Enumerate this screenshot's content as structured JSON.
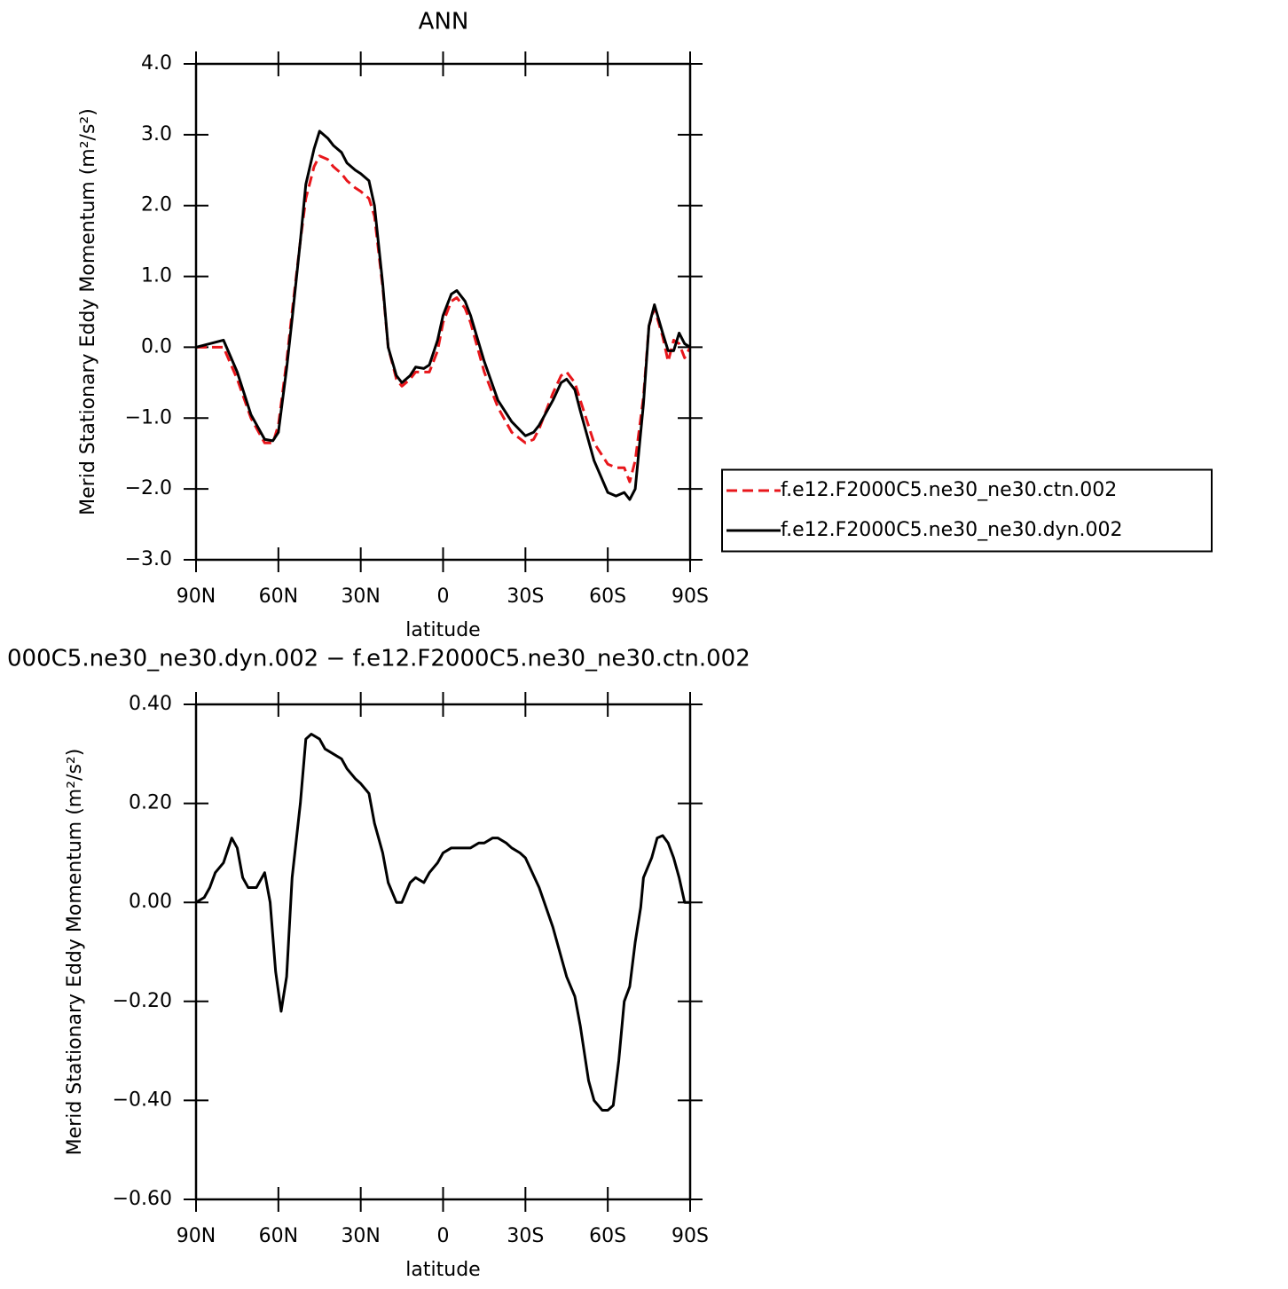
{
  "chart_data": [
    {
      "type": "line",
      "title": "ANN",
      "x_label": "latitude",
      "y_label": "Merid Stationary Eddy Momentum (m²/s²)",
      "x": [
        90,
        85,
        80,
        75,
        70,
        65,
        62,
        60,
        57,
        55,
        52,
        50,
        47,
        45,
        42,
        40,
        37,
        35,
        32,
        30,
        27,
        25,
        22,
        20,
        17,
        15,
        12,
        10,
        7,
        5,
        2,
        0,
        -3,
        -5,
        -8,
        -10,
        -15,
        -20,
        -25,
        -30,
        -33,
        -35,
        -40,
        -43,
        -45,
        -48,
        -50,
        -55,
        -60,
        -63,
        -66,
        -68,
        -70,
        -73,
        -75,
        -77,
        -80,
        -82,
        -84,
        -86,
        -88,
        -90
      ],
      "series": [
        {
          "name": "f.e12.F2000C5.ne30_ne30.ctn.002",
          "color": "#e8161b",
          "line_style": "dashed",
          "values": [
            0,
            0,
            0,
            -0.45,
            -1.0,
            -1.35,
            -1.35,
            -1.1,
            -0.2,
            0.5,
            1.5,
            2.1,
            2.55,
            2.7,
            2.65,
            2.55,
            2.45,
            2.35,
            2.25,
            2.2,
            2.1,
            1.85,
            0.85,
            0.0,
            -0.45,
            -0.55,
            -0.45,
            -0.35,
            -0.35,
            -0.35,
            -0.05,
            0.35,
            0.65,
            0.7,
            0.55,
            0.35,
            -0.35,
            -0.85,
            -1.2,
            -1.35,
            -1.3,
            -1.15,
            -0.65,
            -0.4,
            -0.35,
            -0.5,
            -0.75,
            -1.35,
            -1.65,
            -1.7,
            -1.7,
            -1.9,
            -1.6,
            -0.7,
            0.3,
            0.55,
            0.15,
            -0.2,
            0.1,
            0.05,
            -0.15,
            0.0
          ]
        },
        {
          "name": "f.e12.F2000C5.ne30_ne30.dyn.002",
          "color": "#000000",
          "line_style": "solid",
          "values": [
            0,
            0.05,
            0.1,
            -0.35,
            -0.95,
            -1.3,
            -1.32,
            -1.2,
            -0.3,
            0.4,
            1.5,
            2.3,
            2.8,
            3.05,
            2.95,
            2.85,
            2.75,
            2.6,
            2.5,
            2.45,
            2.35,
            2.0,
            0.9,
            0.0,
            -0.4,
            -0.5,
            -0.4,
            -0.28,
            -0.3,
            -0.25,
            0.1,
            0.45,
            0.75,
            0.8,
            0.65,
            0.45,
            -0.2,
            -0.75,
            -1.05,
            -1.25,
            -1.2,
            -1.1,
            -0.75,
            -0.5,
            -0.45,
            -0.6,
            -0.9,
            -1.6,
            -2.05,
            -2.1,
            -2.05,
            -2.15,
            -2.0,
            -0.8,
            0.3,
            0.6,
            0.2,
            -0.05,
            -0.05,
            0.2,
            0.05,
            0.0
          ]
        }
      ],
      "xlim": [
        90,
        -90
      ],
      "xticks": [
        {
          "value": 90,
          "label": "90N"
        },
        {
          "value": 60,
          "label": "60N"
        },
        {
          "value": 30,
          "label": "30N"
        },
        0,
        {
          "value": -30,
          "label": "30S"
        },
        {
          "value": -60,
          "label": "60S"
        },
        {
          "value": -90,
          "label": "90S"
        }
      ],
      "ylim": [
        -3,
        4
      ],
      "yticks": [
        {
          "value": 4,
          "label": "4.0"
        },
        {
          "value": 3,
          "label": "3.0"
        },
        {
          "value": 2,
          "label": "2.0"
        },
        {
          "value": 1,
          "label": "1.0"
        },
        {
          "value": 0,
          "label": "0.0"
        },
        {
          "value": -1,
          "label": "−1.0"
        },
        {
          "value": -2,
          "label": "−2.0"
        },
        {
          "value": -3,
          "label": "−3.0"
        }
      ],
      "legend": "right"
    },
    {
      "type": "line",
      "title": "000C5.ne30_ne30.dyn.002 − f.e12.F2000C5.ne30_ne30.ctn.002",
      "x_label": "latitude",
      "y_label": "Merid Stationary Eddy Momentum (m²/s²)",
      "x": [
        90,
        87,
        85,
        83,
        80,
        77,
        75,
        73,
        71,
        68,
        65,
        63,
        61,
        59,
        57,
        55,
        52,
        50,
        48,
        45,
        43,
        40,
        37,
        35,
        32,
        30,
        27,
        25,
        22,
        20,
        17,
        15,
        12,
        10,
        7,
        5,
        2,
        0,
        -3,
        -5,
        -8,
        -10,
        -13,
        -15,
        -18,
        -20,
        -23,
        -25,
        -28,
        -30,
        -35,
        -40,
        -45,
        -48,
        -50,
        -53,
        -55,
        -58,
        -60,
        -62,
        -64,
        -66,
        -68,
        -70,
        -72,
        -73,
        -76,
        -78,
        -80,
        -82,
        -84,
        -86,
        -88,
        -90
      ],
      "series": [
        {
          "color": "#000000",
          "line_style": "solid",
          "values": [
            0,
            0.01,
            0.03,
            0.06,
            0.08,
            0.13,
            0.11,
            0.05,
            0.03,
            0.03,
            0.06,
            0,
            -0.14,
            -0.22,
            -0.15,
            0.05,
            0.2,
            0.33,
            0.34,
            0.33,
            0.31,
            0.3,
            0.29,
            0.27,
            0.25,
            0.24,
            0.22,
            0.16,
            0.1,
            0.04,
            0,
            0,
            0.04,
            0.05,
            0.04,
            0.06,
            0.08,
            0.1,
            0.11,
            0.11,
            0.11,
            0.11,
            0.12,
            0.12,
            0.13,
            0.13,
            0.12,
            0.11,
            0.1,
            0.09,
            0.03,
            -0.05,
            -0.15,
            -0.19,
            -0.25,
            -0.36,
            -0.4,
            -0.42,
            -0.42,
            -0.41,
            -0.32,
            -0.2,
            -0.17,
            -0.08,
            -0.01,
            0.05,
            0.09,
            0.13,
            0.135,
            0.12,
            0.09,
            0.05,
            0,
            0
          ]
        }
      ],
      "xlim": [
        90,
        -90
      ],
      "xticks": [
        {
          "value": 90,
          "label": "90N"
        },
        {
          "value": 60,
          "label": "60N"
        },
        {
          "value": 30,
          "label": "30N"
        },
        0,
        {
          "value": -30,
          "label": "30S"
        },
        {
          "value": -60,
          "label": "60S"
        },
        {
          "value": -90,
          "label": "90S"
        }
      ],
      "ylim": [
        -0.6,
        0.4
      ],
      "yticks": [
        {
          "value": 0.4,
          "label": "0.40"
        },
        {
          "value": 0.2,
          "label": "0.20"
        },
        {
          "value": 0,
          "label": "0.00"
        },
        {
          "value": -0.2,
          "label": "−0.20"
        },
        {
          "value": -0.4,
          "label": "−0.40"
        },
        {
          "value": -0.6,
          "label": "−0.60"
        }
      ]
    }
  ]
}
